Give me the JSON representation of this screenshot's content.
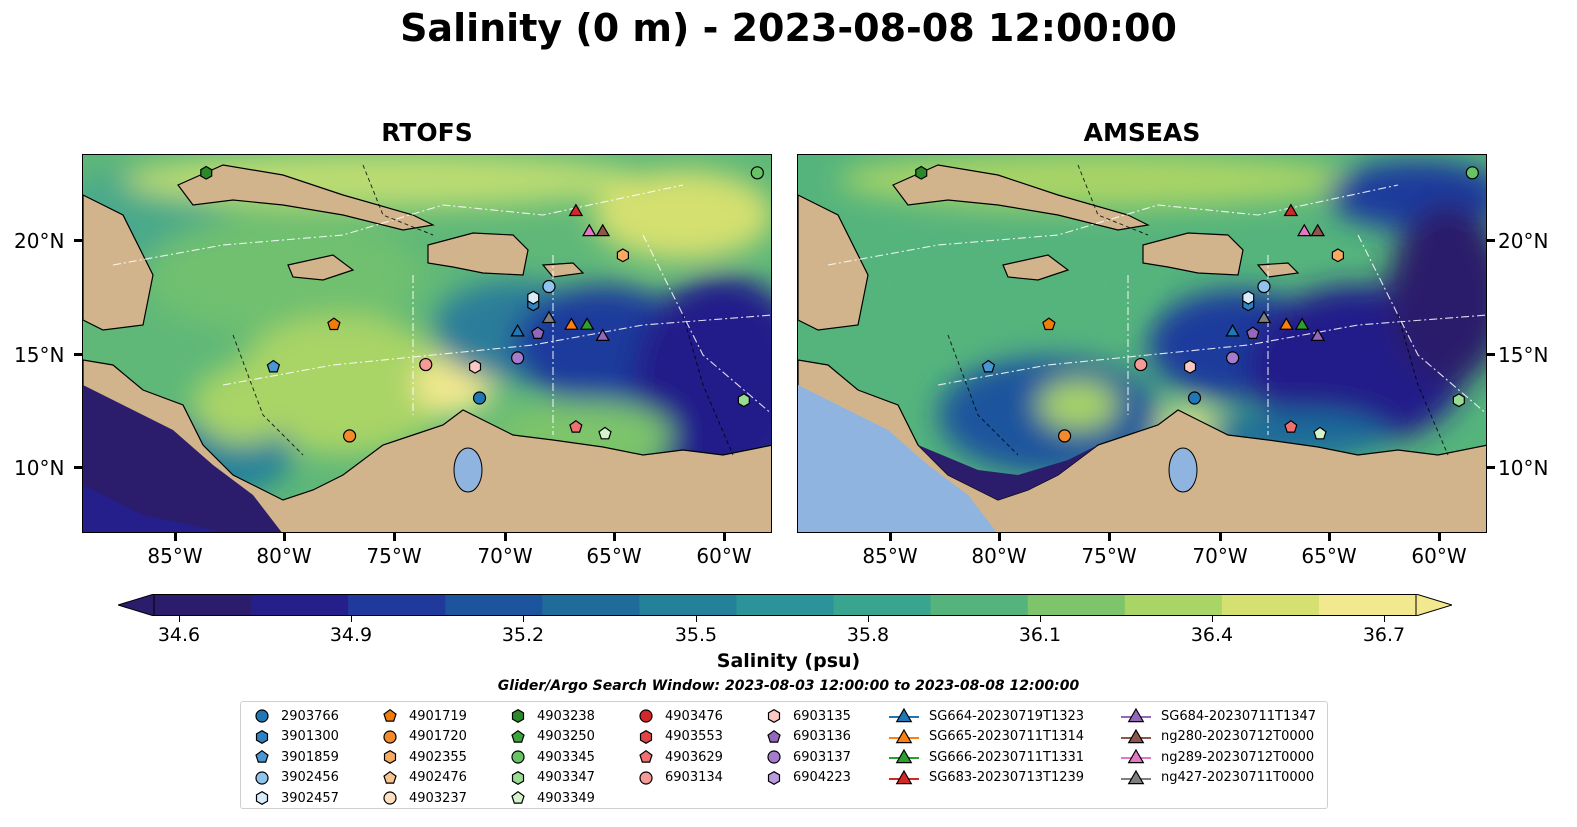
{
  "title": "Salinity (0 m) - 2023-08-08 12:00:00",
  "panels": [
    {
      "name": "RTOFS"
    },
    {
      "name": "AMSEAS"
    }
  ],
  "axes": {
    "lon_labels": [
      "85°W",
      "80°W",
      "75°W",
      "70°W",
      "65°W",
      "60°W"
    ],
    "lat_labels": [
      "20°N",
      "15°N",
      "10°N"
    ],
    "lon_range": [
      -89,
      -58.2
    ],
    "lat_range": [
      7,
      24
    ]
  },
  "colorbar": {
    "label": "Salinity (psu)",
    "ticks": [
      "34.6",
      "34.9",
      "35.2",
      "35.5",
      "35.8",
      "36.1",
      "36.4",
      "36.7"
    ],
    "range": [
      34.6,
      36.7
    ],
    "extend": "both",
    "colormap": [
      "#2b1d6b",
      "#241f8a",
      "#1f3a9c",
      "#1c559d",
      "#1f6c9a",
      "#23819a",
      "#2b949a",
      "#3aa58e",
      "#55b47c",
      "#7dc46a",
      "#a9d466",
      "#d4e070",
      "#f2e98e"
    ]
  },
  "search_window": "Glider/Argo Search Window: 2023-08-03 12:00:00 to 2023-08-08 12:00:00",
  "legend": {
    "columns": [
      [
        {
          "label": "2903766",
          "marker": "circle",
          "color": "#1f77b4"
        },
        {
          "label": "3901300",
          "marker": "hexagon",
          "color": "#2f80c0"
        },
        {
          "label": "3901859",
          "marker": "pentagon",
          "color": "#4a96d4"
        },
        {
          "label": "3902456",
          "marker": "circle",
          "color": "#8ec4ee"
        },
        {
          "label": "3902457",
          "marker": "hexagon",
          "color": "#d6ecfb"
        }
      ],
      [
        {
          "label": "4901719",
          "marker": "pentagon",
          "color": "#f07c0c"
        },
        {
          "label": "4901720",
          "marker": "circle",
          "color": "#f58a2c"
        },
        {
          "label": "4902355",
          "marker": "hexagon",
          "color": "#f8aa60"
        },
        {
          "label": "4902476",
          "marker": "pentagon",
          "color": "#fbc48c"
        },
        {
          "label": "4903237",
          "marker": "circle",
          "color": "#fde0c0"
        }
      ],
      [
        {
          "label": "4903238",
          "marker": "hexagon",
          "color": "#2a8a2a"
        },
        {
          "label": "4903250",
          "marker": "pentagon",
          "color": "#3ba43b"
        },
        {
          "label": "4903345",
          "marker": "circle",
          "color": "#66c466"
        },
        {
          "label": "4903347",
          "marker": "hexagon",
          "color": "#98dc92"
        },
        {
          "label": "4903349",
          "marker": "pentagon",
          "color": "#d4f2cc"
        }
      ],
      [
        {
          "label": "4903476",
          "marker": "circle",
          "color": "#d62728"
        },
        {
          "label": "4903553",
          "marker": "hexagon",
          "color": "#e04545"
        },
        {
          "label": "4903629",
          "marker": "pentagon",
          "color": "#ee7070"
        },
        {
          "label": "6903134",
          "marker": "circle",
          "color": "#f59a96"
        }
      ],
      [
        {
          "label": "6903135",
          "marker": "hexagon",
          "color": "#fbc8c4"
        },
        {
          "label": "6903136",
          "marker": "pentagon",
          "color": "#9467bd"
        },
        {
          "label": "6903137",
          "marker": "circle",
          "color": "#a57ccc"
        },
        {
          "label": "6904223",
          "marker": "hexagon",
          "color": "#bb9ae0"
        }
      ],
      [
        {
          "label": "SG664-20230719T1323",
          "marker": "triangle",
          "color": "#1f77b4"
        },
        {
          "label": "SG665-20230711T1314",
          "marker": "triangle",
          "color": "#ff7f0e"
        },
        {
          "label": "SG666-20230711T1331",
          "marker": "triangle",
          "color": "#2ca02c"
        },
        {
          "label": "SG683-20230713T1239",
          "marker": "triangle",
          "color": "#d62728"
        }
      ],
      [
        {
          "label": "SG684-20230711T1347",
          "marker": "triangle",
          "color": "#9467bd"
        },
        {
          "label": "ng280-20230712T0000",
          "marker": "triangle",
          "color": "#8c564b"
        },
        {
          "label": "ng289-20230712T0000",
          "marker": "triangle",
          "color": "#e377c2"
        },
        {
          "label": "ng427-20230711T0000",
          "marker": "triangle",
          "color": "#7f7f7f"
        }
      ]
    ]
  },
  "observations": [
    {
      "id": "2903766",
      "lon": -71.3,
      "lat": 13.1
    },
    {
      "id": "3901300",
      "lon": -68.9,
      "lat": 17.3
    },
    {
      "id": "3901859",
      "lon": -80.5,
      "lat": 14.5
    },
    {
      "id": "3902456",
      "lon": -68.2,
      "lat": 18.1
    },
    {
      "id": "3902457",
      "lon": -68.9,
      "lat": 17.6
    },
    {
      "id": "4901719",
      "lon": -77.8,
      "lat": 16.4
    },
    {
      "id": "4901720",
      "lon": -77.1,
      "lat": 11.4
    },
    {
      "id": "4902355",
      "lon": -64.9,
      "lat": 19.5
    },
    {
      "id": "4903238",
      "lon": -83.5,
      "lat": 23.2
    },
    {
      "id": "4903345",
      "lon": -58.9,
      "lat": 23.2
    },
    {
      "id": "4903347",
      "lon": -59.5,
      "lat": 13.0
    },
    {
      "id": "4903349",
      "lon": -65.7,
      "lat": 11.5
    },
    {
      "id": "4903629",
      "lon": -67.0,
      "lat": 11.8
    },
    {
      "id": "6903134",
      "lon": -73.7,
      "lat": 14.6
    },
    {
      "id": "6903135",
      "lon": -71.5,
      "lat": 14.5
    },
    {
      "id": "6903136",
      "lon": -68.7,
      "lat": 16.0
    },
    {
      "id": "6903137",
      "lon": -69.6,
      "lat": 14.9
    },
    {
      "id": "SG664-20230719T1323",
      "lon": -69.6,
      "lat": 16.1
    },
    {
      "id": "SG665-20230711T1314",
      "lon": -67.2,
      "lat": 16.4
    },
    {
      "id": "SG666-20230711T1331",
      "lon": -66.5,
      "lat": 16.4
    },
    {
      "id": "SG683-20230713T1239",
      "lon": -67.0,
      "lat": 21.5
    },
    {
      "id": "SG684-20230711T1347",
      "lon": -65.8,
      "lat": 15.9
    },
    {
      "id": "ng280-20230712T0000",
      "lon": -65.8,
      "lat": 20.6
    },
    {
      "id": "ng289-20230712T0000",
      "lon": -66.4,
      "lat": 20.6
    },
    {
      "id": "ng427-20230711T0000",
      "lon": -68.2,
      "lat": 16.7
    }
  ]
}
